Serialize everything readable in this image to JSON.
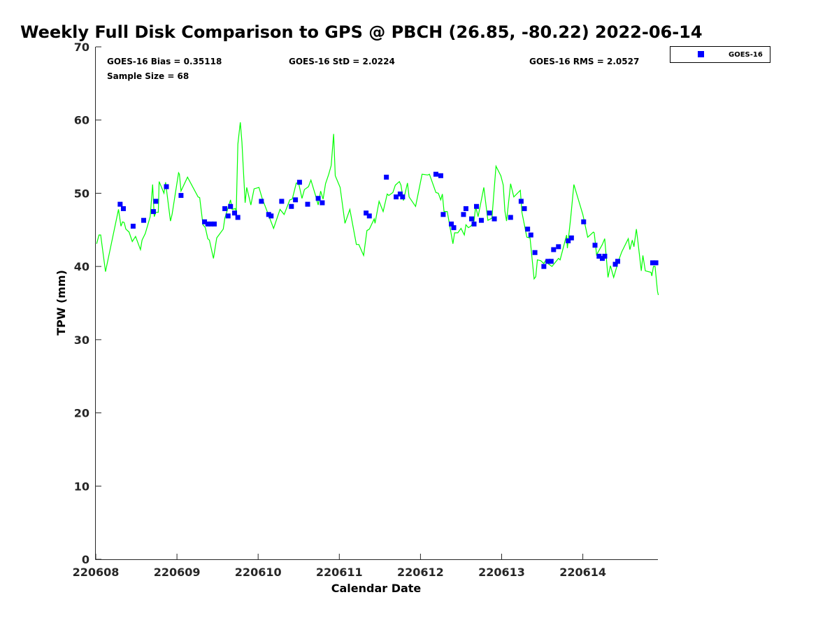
{
  "chart_data": {
    "type": "scatter",
    "title": "Weekly Full Disk Comparison to GPS @ PBCH (26.85, -80.22) 2022-06-14",
    "xlabel": "Calendar Date",
    "ylabel": "TPW (mm)",
    "ylim": [
      0,
      70
    ],
    "xlim": [
      0,
      6.93
    ],
    "x_units": "days since 220608",
    "yticks": [
      0,
      10,
      20,
      30,
      40,
      50,
      60,
      70
    ],
    "xticks": [
      0,
      1,
      2,
      3,
      4,
      5,
      6
    ],
    "xtick_labels": [
      "220608",
      "220609",
      "220610",
      "220611",
      "220612",
      "220613",
      "220614"
    ],
    "grid": false,
    "legend": {
      "placement": "top-right",
      "entries": [
        "GOES-16"
      ]
    },
    "annotations": {
      "bias": "GOES-16 Bias = 0.35118",
      "std": "GOES-16 StD = 2.0224",
      "rms": "GOES-16 RMS = 2.0527",
      "sample": "Sample Size = 68"
    },
    "series": [
      {
        "name": "GPS",
        "style": "line",
        "color": "#00ff00",
        "x": [
          0.01,
          0.04,
          0.06,
          0.12,
          0.28,
          0.31,
          0.33,
          0.35,
          0.37,
          0.41,
          0.45,
          0.49,
          0.55,
          0.57,
          0.61,
          0.67,
          0.7,
          0.72,
          0.74,
          0.77,
          0.78,
          0.84,
          0.86,
          0.92,
          0.94,
          1.02,
          1.03,
          1.05,
          1.13,
          1.26,
          1.28,
          1.32,
          1.35,
          1.38,
          1.4,
          1.45,
          1.49,
          1.57,
          1.59,
          1.66,
          1.68,
          1.72,
          1.73,
          1.75,
          1.78,
          1.8,
          1.84,
          1.86,
          1.91,
          1.95,
          2.01,
          2.05,
          2.19,
          2.27,
          2.32,
          2.39,
          2.42,
          2.47,
          2.5,
          2.54,
          2.57,
          2.62,
          2.65,
          2.71,
          2.74,
          2.77,
          2.8,
          2.83,
          2.87,
          2.9,
          2.93,
          2.95,
          3.01,
          3.07,
          3.13,
          3.21,
          3.24,
          3.3,
          3.34,
          3.37,
          3.43,
          3.44,
          3.49,
          3.54,
          3.59,
          3.61,
          3.66,
          3.69,
          3.74,
          3.76,
          3.79,
          3.84,
          3.86,
          3.94,
          4.02,
          4.09,
          4.11,
          4.19,
          4.22,
          4.25,
          4.27,
          4.29,
          4.33,
          4.4,
          4.42,
          4.46,
          4.5,
          4.54,
          4.56,
          4.59,
          4.62,
          4.66,
          4.68,
          4.71,
          4.78,
          4.83,
          4.88,
          4.91,
          4.93,
          4.99,
          5.02,
          5.04,
          5.06,
          5.11,
          5.15,
          5.23,
          5.25,
          5.31,
          5.35,
          5.4,
          5.42,
          5.44,
          5.48,
          5.52,
          5.54,
          5.57,
          5.62,
          5.7,
          5.72,
          5.8,
          5.81,
          5.85,
          5.89,
          6.0,
          6.06,
          6.13,
          6.14,
          6.17,
          6.2,
          6.24,
          6.27,
          6.31,
          6.34,
          6.38,
          6.44,
          6.48,
          6.56,
          6.58,
          6.61,
          6.63,
          6.66,
          6.68,
          6.72,
          6.74,
          6.77,
          6.84,
          6.85,
          6.87,
          6.89,
          6.92,
          6.93
        ],
        "y": [
          43.1,
          44.3,
          44.3,
          39.3,
          47.8,
          45.5,
          46.1,
          46.0,
          45.1,
          44.7,
          43.4,
          44.1,
          42.3,
          43.6,
          44.5,
          46.8,
          51.2,
          46.8,
          47.4,
          47.4,
          51.6,
          50.0,
          51.5,
          46.2,
          47.1,
          52.8,
          52.6,
          50.3,
          52.2,
          49.5,
          49.4,
          45.7,
          45.3,
          43.8,
          43.6,
          41.1,
          43.9,
          45.1,
          46.6,
          49.1,
          47.8,
          47.9,
          47.5,
          56.7,
          59.7,
          57.0,
          48.7,
          50.8,
          48.4,
          50.6,
          50.8,
          49.3,
          45.2,
          47.8,
          47.1,
          49.1,
          49.2,
          51.4,
          51.3,
          49.3,
          50.5,
          50.9,
          51.8,
          49.6,
          48.4,
          50.3,
          49.2,
          51.3,
          52.6,
          53.8,
          58.1,
          52.4,
          50.8,
          45.9,
          47.8,
          43.0,
          43.0,
          41.5,
          44.9,
          45.1,
          46.5,
          45.9,
          48.9,
          47.5,
          49.9,
          49.7,
          50.1,
          51.1,
          51.6,
          51.1,
          49.0,
          51.4,
          49.5,
          48.2,
          52.6,
          52.5,
          52.6,
          50.1,
          50.0,
          49.1,
          49.9,
          47.5,
          47.5,
          43.1,
          44.6,
          44.6,
          45.2,
          44.3,
          45.7,
          45.3,
          45.5,
          46.2,
          48.2,
          46.8,
          50.8,
          46.3,
          46.6,
          50.9,
          53.7,
          52.4,
          51.1,
          47.6,
          46.2,
          51.3,
          49.5,
          50.4,
          47.4,
          44.0,
          43.9,
          38.3,
          38.6,
          40.9,
          40.8,
          40.4,
          40.8,
          40.4,
          40.0,
          41.1,
          40.9,
          44.3,
          42.5,
          46.6,
          51.2,
          47.1,
          44.0,
          44.7,
          44.6,
          41.6,
          42.2,
          43.0,
          43.8,
          38.5,
          40.1,
          38.5,
          40.8,
          42.0,
          43.8,
          42.3,
          43.6,
          42.7,
          45.1,
          43.3,
          39.4,
          41.5,
          39.4,
          39.2,
          38.7,
          40.0,
          40.0,
          36.6,
          36.1
        ]
      },
      {
        "name": "GOES-16",
        "style": "square-marker",
        "color": "#0000ff",
        "x": [
          0.3,
          0.34,
          0.46,
          0.59,
          0.71,
          0.74,
          0.87,
          1.05,
          1.34,
          1.38,
          1.42,
          1.46,
          1.59,
          1.63,
          1.66,
          1.71,
          1.75,
          2.04,
          2.13,
          2.16,
          2.29,
          2.41,
          2.46,
          2.51,
          2.61,
          2.74,
          2.79,
          3.33,
          3.37,
          3.58,
          3.7,
          3.75,
          3.78,
          4.19,
          4.25,
          4.28,
          4.38,
          4.41,
          4.53,
          4.56,
          4.63,
          4.66,
          4.69,
          4.75,
          4.85,
          4.91,
          5.11,
          5.24,
          5.28,
          5.32,
          5.36,
          5.41,
          5.52,
          5.57,
          5.61,
          5.64,
          5.7,
          5.82,
          5.86,
          6.01,
          6.15,
          6.2,
          6.24,
          6.27,
          6.4,
          6.43,
          6.86,
          6.9
        ],
        "y": [
          48.5,
          47.9,
          45.5,
          46.3,
          47.5,
          48.9,
          50.9,
          49.7,
          46.1,
          45.8,
          45.8,
          45.8,
          47.9,
          46.9,
          48.2,
          47.3,
          46.7,
          48.9,
          47.1,
          46.9,
          48.9,
          48.2,
          49.1,
          51.5,
          48.5,
          49.3,
          48.7,
          47.3,
          46.9,
          52.2,
          49.5,
          49.9,
          49.5,
          52.6,
          52.4,
          47.1,
          45.8,
          45.3,
          47.1,
          47.9,
          46.5,
          45.8,
          48.2,
          46.3,
          47.3,
          46.5,
          46.7,
          48.9,
          47.9,
          45.1,
          44.3,
          41.9,
          40.0,
          40.7,
          40.7,
          42.3,
          42.7,
          43.5,
          43.9,
          46.1,
          42.9,
          41.4,
          41.1,
          41.4,
          40.3,
          40.7,
          40.5,
          40.5
        ]
      }
    ]
  }
}
